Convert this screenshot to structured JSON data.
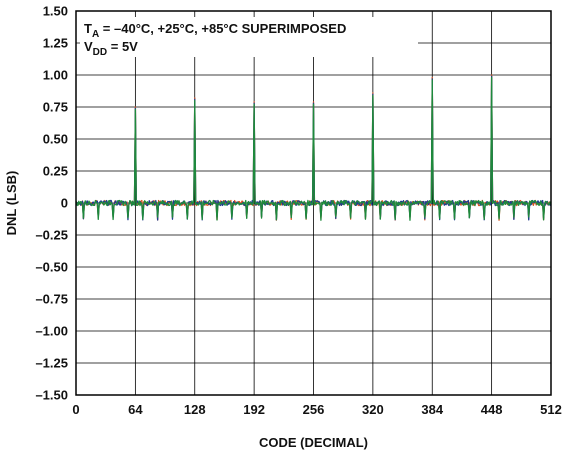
{
  "chart_data": {
    "type": "line",
    "xlabel": "CODE (DECIMAL)",
    "ylabel": "DNL (LSB)",
    "xlim": [
      0,
      512
    ],
    "ylim": [
      -1.5,
      1.5
    ],
    "x_ticks": [
      0,
      64,
      128,
      192,
      256,
      320,
      384,
      448,
      512
    ],
    "x_tick_labels": [
      "0",
      "64",
      "128",
      "192",
      "256",
      "320",
      "384",
      "448",
      "512"
    ],
    "y_ticks": [
      1.5,
      1.25,
      1.0,
      0.75,
      0.5,
      0.25,
      0,
      -0.25,
      -0.5,
      -0.75,
      -1.0,
      -1.25,
      -1.5
    ],
    "y_tick_labels": [
      "1.50",
      "1.25",
      "1.00",
      "0.75",
      "0.50",
      "0.25",
      "0",
      "–0.25",
      "–0.50",
      "–0.75",
      "–1.00",
      "–1.25",
      "–1.50"
    ],
    "grid": true,
    "annotation": {
      "line1_prefix": "T",
      "line1_sub": "A",
      "line1_rest": " = –40°C, +25°C, +85°C SUPERIMPOSED",
      "line2_prefix": "V",
      "line2_sub": "DD",
      "line2_rest": " = 5V"
    },
    "series_colors": [
      "#d9541e",
      "#1f3d8c",
      "#1e8a3c"
    ],
    "pattern": {
      "period": 16,
      "dip_offset": 8,
      "dip_value": -0.12,
      "baseline": 0.0,
      "noise_amplitude": 0.02
    },
    "spikes": [
      {
        "x": 64,
        "value": 0.75
      },
      {
        "x": 128,
        "value": 0.82
      },
      {
        "x": 192,
        "value": 0.79
      },
      {
        "x": 256,
        "value": 0.79
      },
      {
        "x": 320,
        "value": 0.86
      },
      {
        "x": 384,
        "value": 0.98
      },
      {
        "x": 448,
        "value": 1.0
      }
    ]
  }
}
